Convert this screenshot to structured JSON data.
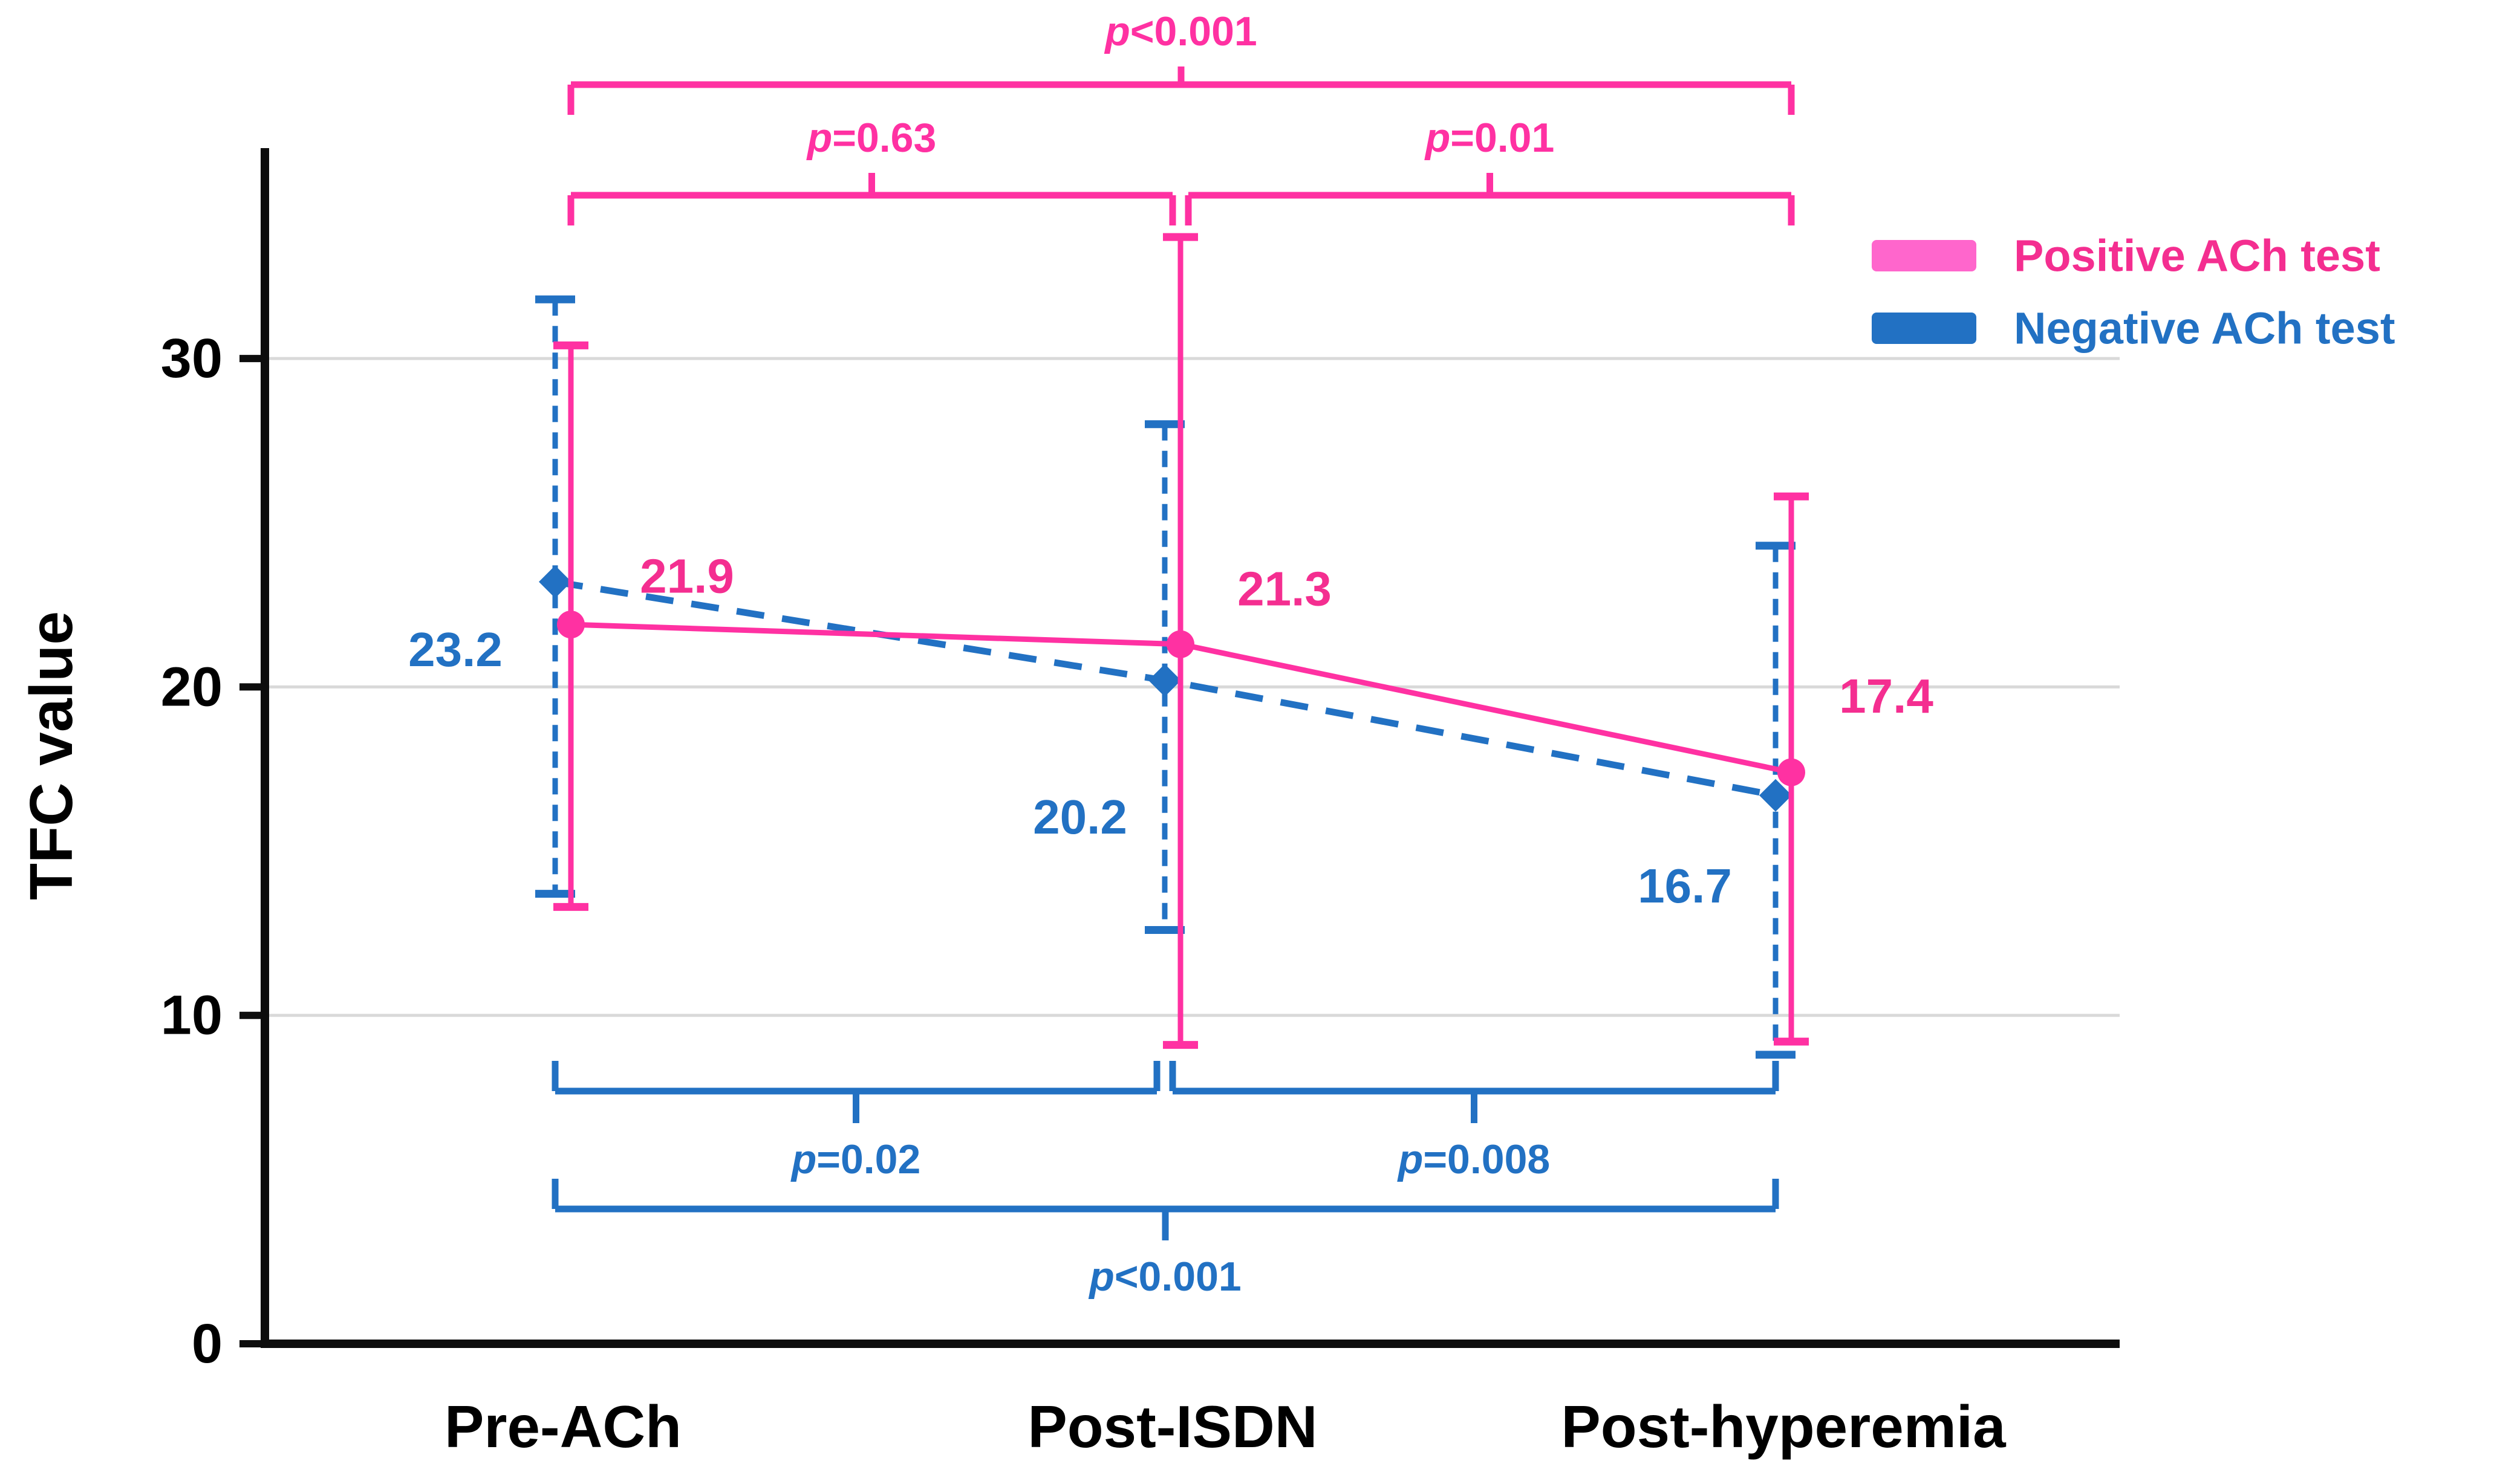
{
  "chart_data": {
    "type": "line",
    "title": "",
    "xlabel": "",
    "ylabel": "TFC value",
    "categories": [
      "Pre-ACh",
      "Post-ISDN",
      "Post-hyperemia"
    ],
    "yticks": [
      0,
      10,
      20,
      30
    ],
    "ylim": [
      0,
      36.4
    ],
    "grid": "horizontal-gray-lines-at-10-20-30",
    "legend_position": "top-right",
    "series": [
      {
        "name": "Negative ACh test",
        "values": [
          23.2,
          20.2,
          16.7
        ],
        "err_high": [
          31.8,
          28.0,
          24.3
        ],
        "err_low": [
          13.7,
          12.6,
          8.8
        ],
        "line_style": "dashed",
        "marker": "diamond",
        "color": "#2271c3",
        "label_color": "#2271c3",
        "swatch_color": "#2271c3",
        "value_labels": [
          "23.2",
          "20.2",
          "16.7"
        ],
        "value_label_offsets": [
          [
            -165,
            112
          ],
          [
            -140,
            226
          ],
          [
            -150,
            150
          ]
        ]
      },
      {
        "name": "Positive ACh test",
        "values": [
          21.9,
          21.3,
          17.4
        ],
        "err_high": [
          30.4,
          33.7,
          25.8
        ],
        "err_low": [
          13.3,
          9.1,
          9.2
        ],
        "line_style": "solid",
        "marker": "circle",
        "color": "#ff31a2",
        "label_color": "#f42e90",
        "swatch_color": "#ff66cc",
        "value_labels": [
          "21.9",
          "21.3",
          "17.4"
        ],
        "value_label_offsets": [
          [
            192,
            -80
          ],
          [
            172,
            -92
          ],
          [
            157,
            -126
          ]
        ]
      }
    ],
    "annotations_top": [
      {
        "label": "p<0.001",
        "from": 0,
        "to": 2,
        "row": 0,
        "series": "Positive ACh test"
      },
      {
        "label": "p=0.63",
        "from": 0,
        "to": 1,
        "row": 1,
        "series": "Positive ACh test"
      },
      {
        "label": "p=0.01",
        "from": 1,
        "to": 2,
        "row": 1,
        "series": "Positive ACh test"
      }
    ],
    "annotations_bottom": [
      {
        "label": "p=0.02",
        "from": 0,
        "to": 1,
        "row": 0,
        "series": "Negative ACh test"
      },
      {
        "label": "p=0.008",
        "from": 1,
        "to": 2,
        "row": 0,
        "series": "Negative ACh test"
      },
      {
        "label": "p<0.001",
        "from": 0,
        "to": 2,
        "row": 1,
        "series": "Negative ACh test"
      }
    ],
    "legend": [
      {
        "label": "Positive ACh test",
        "text_color": "#f42e90",
        "swatch_color": "#ff66cc"
      },
      {
        "label": "Negative ACh test",
        "text_color": "#2271c3",
        "swatch_color": "#2271c3"
      }
    ],
    "colors": {
      "grid": "#d9d9d9",
      "axis": "#0d0d0d",
      "tick_label": "#000000",
      "positive_pink_line": "#ff31a2",
      "positive_pink_text": "#f42e90",
      "positive_legend_swatch": "#ff66cc",
      "negative_blue": "#2271c3"
    }
  }
}
